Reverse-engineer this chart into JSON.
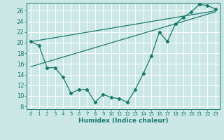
{
  "xlabel": "Humidex (Indice chaleur)",
  "background_color": "#cce8e6",
  "grid_color": "#ffffff",
  "line_color": "#1a7a6e",
  "xlim": [
    -0.5,
    23.5
  ],
  "ylim": [
    7.5,
    27.5
  ],
  "xticks": [
    0,
    1,
    2,
    3,
    4,
    5,
    6,
    7,
    8,
    9,
    10,
    11,
    12,
    13,
    14,
    15,
    16,
    17,
    18,
    19,
    20,
    21,
    22,
    23
  ],
  "yticks": [
    8,
    10,
    12,
    14,
    16,
    18,
    20,
    22,
    24,
    26
  ],
  "data_x": [
    0,
    1,
    2,
    3,
    4,
    5,
    6,
    7,
    8,
    9,
    10,
    11,
    12,
    13,
    14,
    15,
    16,
    17,
    18,
    19,
    20,
    21,
    22,
    23
  ],
  "data_y": [
    20.2,
    19.5,
    15.3,
    15.3,
    13.5,
    10.5,
    11.2,
    11.2,
    8.8,
    10.3,
    9.7,
    9.5,
    8.8,
    11.2,
    14.2,
    17.5,
    22.0,
    20.2,
    23.5,
    24.8,
    25.8,
    27.2,
    27.0,
    26.3
  ],
  "trend1_x0": 0,
  "trend1_y0": 20.2,
  "trend1_x1": 23,
  "trend1_y1": 26.0,
  "trend2_x0": 0,
  "trend2_y0": 15.5,
  "trend2_x1": 23,
  "trend2_y1": 25.8
}
